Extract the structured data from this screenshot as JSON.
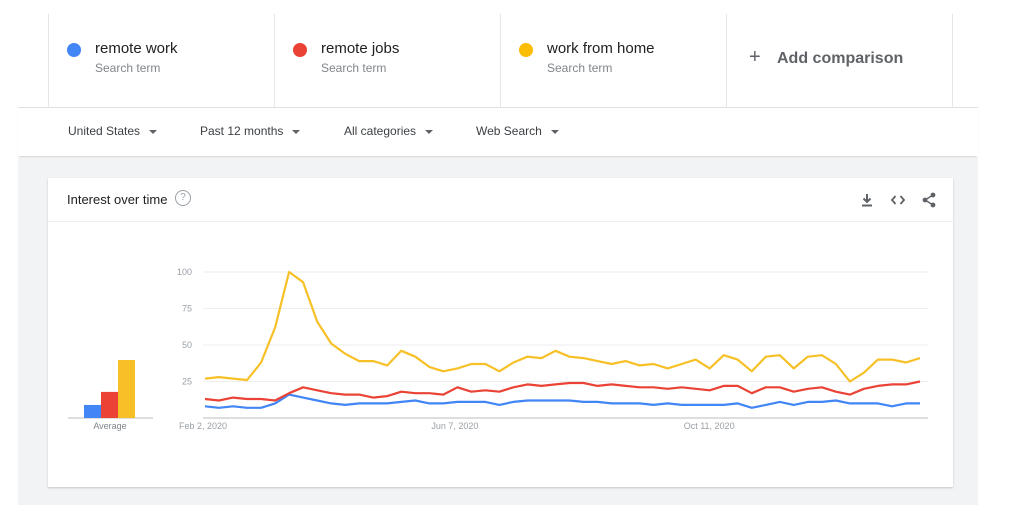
{
  "terms": [
    {
      "name": "remote work",
      "sub": "Search term",
      "color": "#4285f4"
    },
    {
      "name": "remote jobs",
      "sub": "Search term",
      "color": "#ea4335"
    },
    {
      "name": "work from home",
      "sub": "Search term",
      "color": "#fbbc04"
    }
  ],
  "add_comparison": {
    "label": "Add comparison"
  },
  "filters": {
    "region": "United States",
    "period": "Past 12 months",
    "category": "All categories",
    "search_type": "Web Search"
  },
  "card": {
    "title": "Interest over time",
    "help": "?"
  },
  "icons": [
    "download-icon",
    "embed-code-icon",
    "share-icon",
    "help-icon"
  ],
  "chart_data": {
    "type": "line",
    "y_ticks": [
      25,
      50,
      75,
      100
    ],
    "ylim": [
      0,
      100
    ],
    "x_tick_labels": [
      "Feb 2, 2020",
      "Jun 7, 2020",
      "Oct 11, 2020"
    ],
    "x_tick_indices": [
      0,
      18,
      36
    ],
    "average_label": "Average",
    "averages": [
      9,
      18,
      40
    ],
    "series": [
      {
        "name": "remote work",
        "color": "#4285f4",
        "values": [
          8,
          7,
          8,
          7,
          7,
          10,
          16,
          14,
          12,
          10,
          9,
          10,
          10,
          10,
          11,
          12,
          10,
          10,
          11,
          11,
          11,
          9,
          11,
          12,
          12,
          12,
          12,
          11,
          11,
          10,
          10,
          10,
          9,
          10,
          9,
          9,
          9,
          9,
          10,
          7,
          9,
          11,
          9,
          11,
          11,
          12,
          10,
          10,
          10,
          8,
          10,
          10
        ]
      },
      {
        "name": "remote jobs",
        "color": "#ea4335",
        "values": [
          13,
          12,
          14,
          13,
          13,
          12,
          17,
          21,
          19,
          17,
          16,
          16,
          14,
          15,
          18,
          17,
          17,
          16,
          21,
          18,
          19,
          18,
          21,
          23,
          22,
          23,
          24,
          24,
          22,
          23,
          22,
          21,
          21,
          20,
          21,
          20,
          19,
          22,
          22,
          17,
          21,
          21,
          18,
          20,
          21,
          18,
          16,
          20,
          22,
          23,
          23,
          25
        ]
      },
      {
        "name": "work from home",
        "color": "#f6c026",
        "values": [
          27,
          28,
          27,
          26,
          38,
          62,
          100,
          93,
          66,
          51,
          44,
          39,
          39,
          36,
          46,
          42,
          35,
          32,
          34,
          37,
          37,
          32,
          38,
          42,
          41,
          46,
          42,
          41,
          39,
          37,
          39,
          36,
          37,
          34,
          37,
          40,
          34,
          43,
          40,
          32,
          42,
          43,
          34,
          42,
          43,
          37,
          25,
          31,
          40,
          40,
          38,
          41
        ]
      }
    ]
  }
}
